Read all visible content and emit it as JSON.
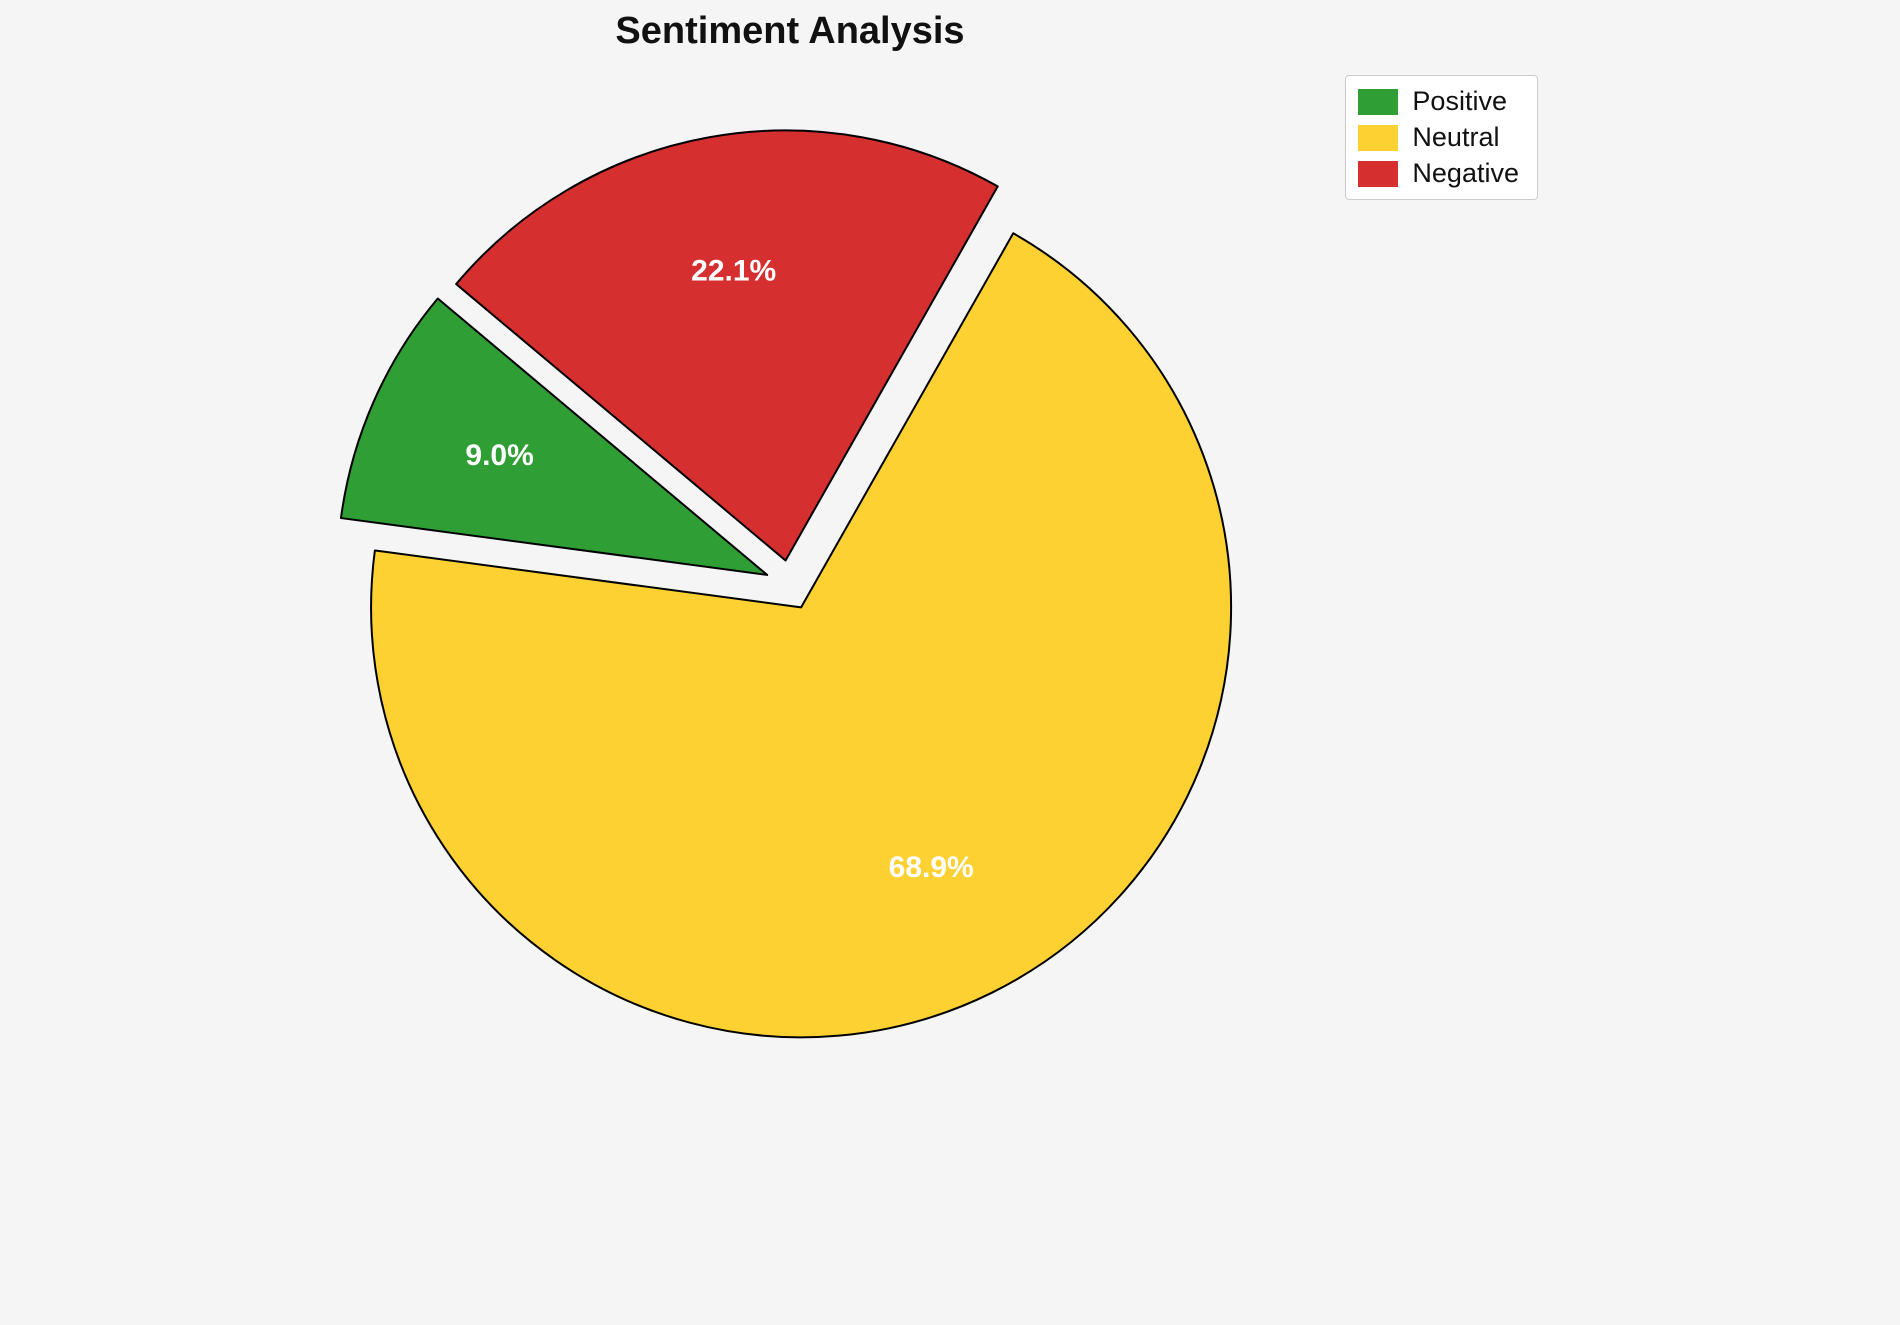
{
  "chart_data": {
    "type": "pie",
    "title": "Sentiment Analysis",
    "slices": [
      {
        "label": "Positive",
        "value": 9.0,
        "pct_label": "9.0%",
        "color": "#2f9e34"
      },
      {
        "label": "Neutral",
        "value": 68.9,
        "pct_label": "68.9%",
        "color": "#fdd132"
      },
      {
        "label": "Negative",
        "value": 22.1,
        "pct_label": "22.1%",
        "color": "#d62f2f"
      }
    ],
    "start_angle": 140,
    "counterclockwise": true,
    "explode": 0.058,
    "label_distance": 0.68,
    "legend_position": "upper right",
    "background_color": "#f5f5f5",
    "edge_color": "#000000",
    "pct_label_color": "#ffffff"
  }
}
